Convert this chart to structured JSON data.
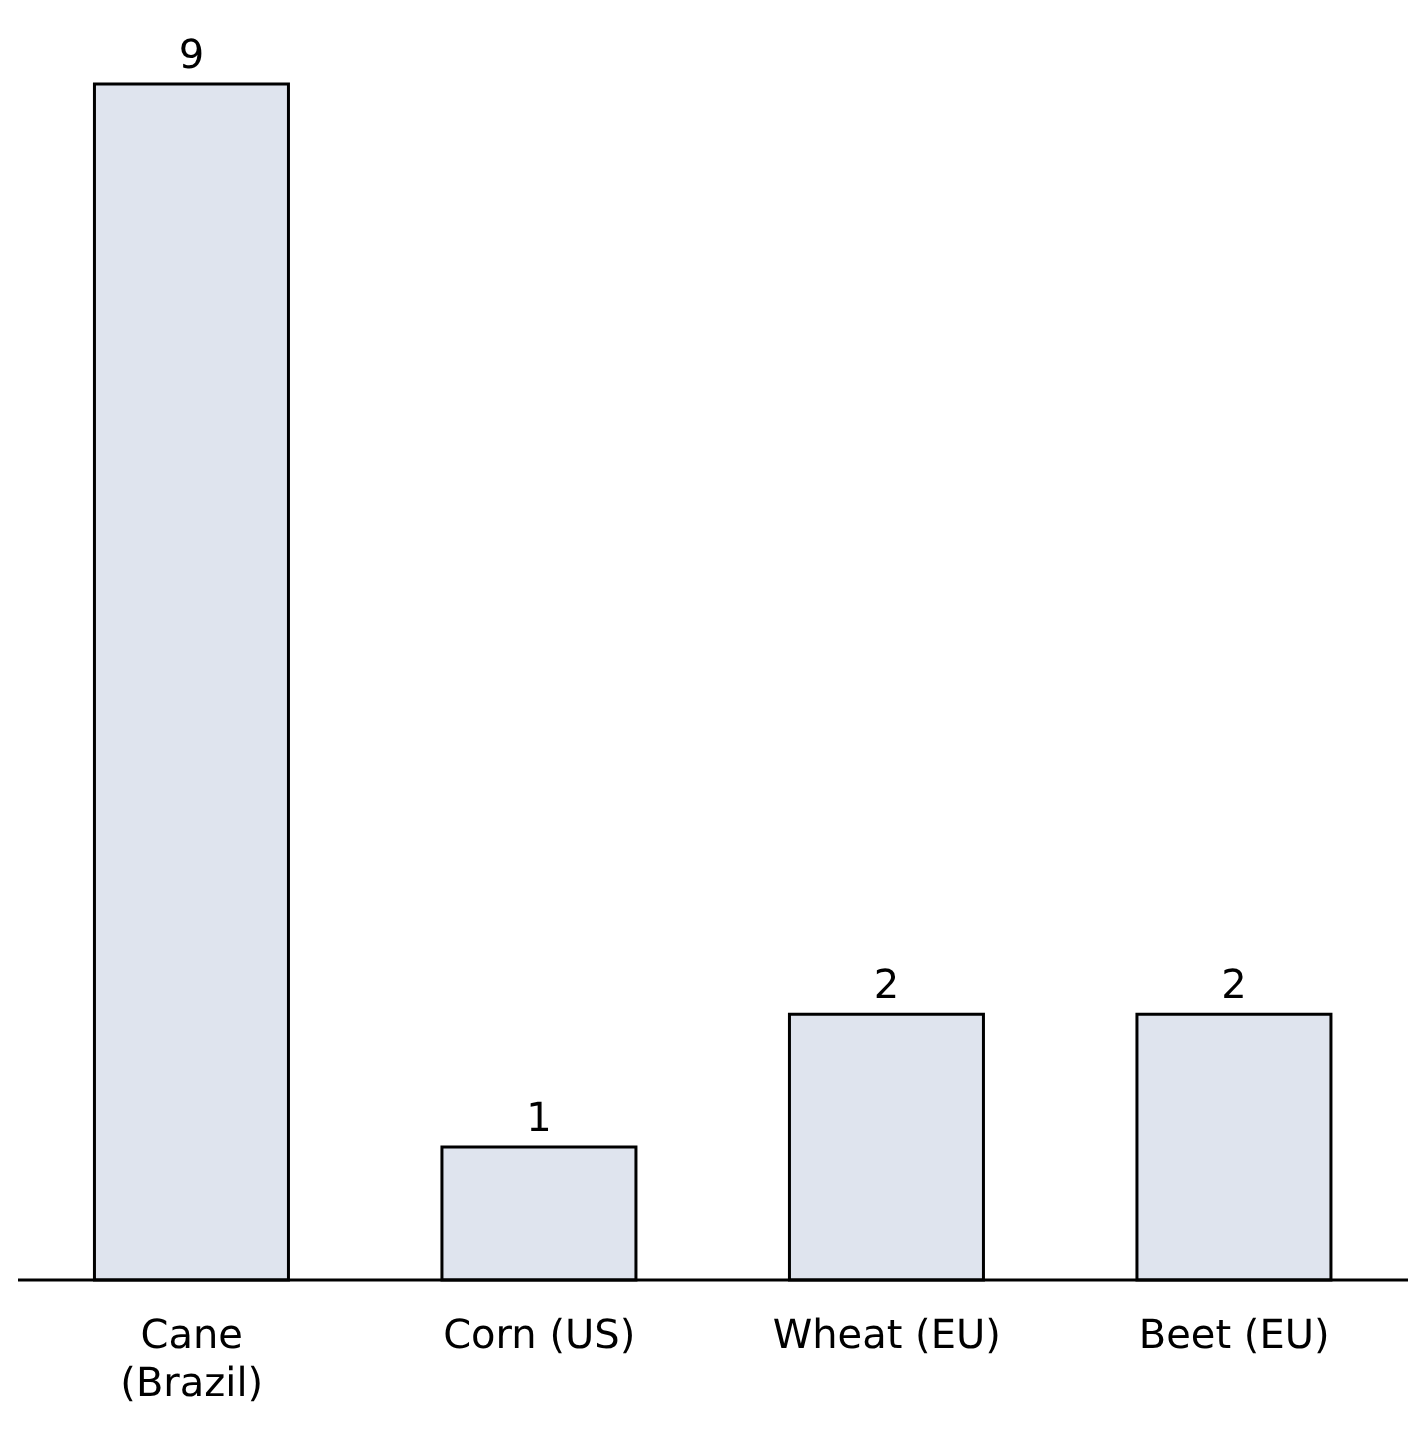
{
  "chart_data": {
    "type": "bar",
    "categories": [
      "Cane (Brazil)",
      "Corn (US)",
      "Wheat (EU)",
      "Beet (EU)"
    ],
    "values": [
      9,
      1,
      2,
      2
    ],
    "color": "#dfe4ee",
    "data_labels": true
  }
}
